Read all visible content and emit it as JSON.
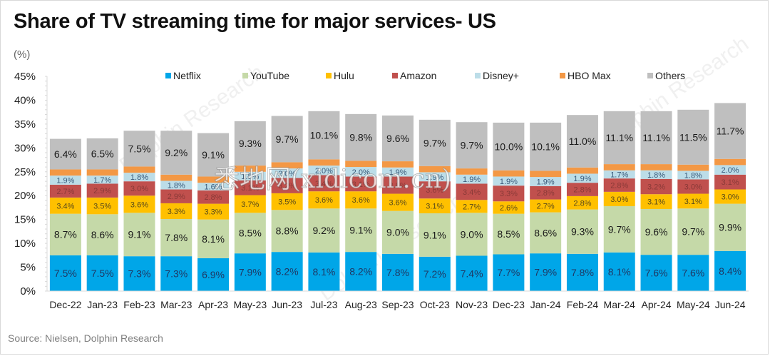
{
  "header": {
    "title": "Share of TV streaming time for major services- US",
    "unit_label": "(%)"
  },
  "footer": {
    "source": "Source:  Nielsen, Dolphin Research"
  },
  "watermarks": [
    "Dolphin Research",
    "海豚投研",
    "悉地网(xidicom.cn)"
  ],
  "chart_data": {
    "type": "bar",
    "stacked": true,
    "title": "Share of TV streaming time for major services- US",
    "xlabel": "",
    "ylabel": "(%)",
    "ylim": [
      0,
      45
    ],
    "yticks": [
      0,
      5,
      10,
      15,
      20,
      25,
      30,
      35,
      40,
      45
    ],
    "ytick_labels": [
      "0%",
      "5%",
      "10%",
      "15%",
      "20%",
      "25%",
      "30%",
      "35%",
      "40%",
      "45%"
    ],
    "legend_position": "top",
    "grid": false,
    "categories": [
      "Dec-22",
      "Jan-23",
      "Feb-23",
      "Mar-23",
      "Apr-23",
      "May-23",
      "Jun-23",
      "Jul-23",
      "Aug-23",
      "Sep-23",
      "Oct-23",
      "Nov-23",
      "Dec-23",
      "Jan-24",
      "Feb-24",
      "Mar-24",
      "Apr-24",
      "May-24",
      "Jun-24"
    ],
    "series": [
      {
        "name": "Netflix",
        "color": "#00a6e8",
        "label_color": "#1f3864",
        "labeled": true,
        "values": [
          7.5,
          7.5,
          7.3,
          7.3,
          6.9,
          7.9,
          8.2,
          8.1,
          8.2,
          7.8,
          7.2,
          7.4,
          7.7,
          7.9,
          7.8,
          8.1,
          7.6,
          7.6,
          8.4
        ]
      },
      {
        "name": "YouTube",
        "color": "#c5d9a8",
        "label_color": "#1a1a1a",
        "labeled": true,
        "values": [
          8.7,
          8.6,
          9.1,
          7.8,
          8.1,
          8.5,
          8.8,
          9.2,
          9.1,
          9.0,
          9.1,
          9.0,
          8.5,
          8.6,
          9.3,
          9.7,
          9.6,
          9.7,
          9.9
        ]
      },
      {
        "name": "Hulu",
        "color": "#ffc000",
        "label_color": "#5a4a1a",
        "labeled": true,
        "values": [
          3.4,
          3.5,
          3.6,
          3.3,
          3.3,
          3.7,
          3.5,
          3.6,
          3.6,
          3.6,
          3.1,
          2.7,
          2.6,
          2.7,
          2.8,
          3.0,
          3.1,
          3.1,
          3.0
        ]
      },
      {
        "name": "Amazon",
        "color": "#c0504d",
        "label_color": "#8a3a38",
        "labeled": true,
        "values": [
          2.7,
          2.9,
          3.0,
          2.9,
          2.8,
          3.1,
          3.2,
          3.4,
          3.1,
          3.6,
          3.6,
          3.4,
          3.3,
          2.8,
          2.8,
          2.8,
          3.2,
          3.0,
          3.1
        ]
      },
      {
        "name": "Disney+",
        "color": "#bcdde8",
        "label_color": "#3a5a7a",
        "labeled": true,
        "values": [
          1.9,
          1.7,
          1.8,
          1.8,
          1.6,
          1.8,
          2.0,
          2.0,
          2.0,
          1.9,
          1.9,
          1.9,
          1.9,
          1.9,
          1.9,
          1.7,
          1.8,
          1.8,
          2.0
        ]
      },
      {
        "name": "HBO Max",
        "color": "#f39845",
        "label_color": "#000000",
        "labeled": false,
        "values": [
          1.3,
          1.3,
          1.3,
          1.3,
          1.3,
          1.3,
          1.3,
          1.3,
          1.3,
          1.3,
          1.3,
          1.3,
          1.3,
          1.3,
          1.3,
          1.3,
          1.3,
          1.3,
          1.3
        ]
      },
      {
        "name": "Others",
        "color": "#bfbfbf",
        "label_color": "#1a1a1a",
        "labeled": true,
        "values": [
          6.4,
          6.5,
          7.5,
          9.2,
          9.1,
          9.3,
          9.7,
          10.1,
          9.8,
          9.6,
          9.7,
          9.7,
          10.0,
          10.1,
          11.0,
          11.1,
          11.1,
          11.5,
          11.7
        ]
      }
    ]
  }
}
